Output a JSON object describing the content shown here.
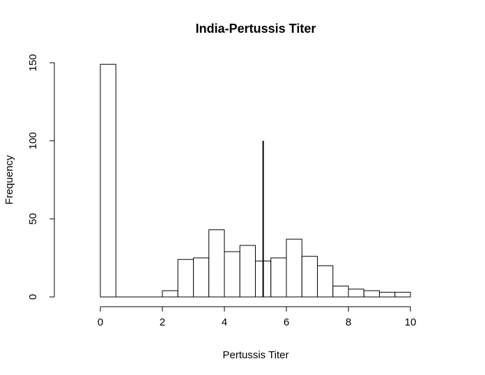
{
  "chart_data": {
    "type": "bar",
    "title": "India-Pertussis Titer",
    "xlabel": "Pertussis Titer",
    "ylabel": "Frequency",
    "xlim": [
      0,
      10
    ],
    "ylim": [
      0,
      150
    ],
    "x_ticks": [
      0,
      2,
      4,
      6,
      8,
      10
    ],
    "y_ticks": [
      0,
      50,
      100,
      150
    ],
    "bins": [
      {
        "x0": 0.0,
        "x1": 0.5,
        "count": 149
      },
      {
        "x0": 0.5,
        "x1": 1.0,
        "count": 0
      },
      {
        "x0": 1.0,
        "x1": 1.5,
        "count": 0
      },
      {
        "x0": 1.5,
        "x1": 2.0,
        "count": 0
      },
      {
        "x0": 2.0,
        "x1": 2.5,
        "count": 4
      },
      {
        "x0": 2.5,
        "x1": 3.0,
        "count": 24
      },
      {
        "x0": 3.0,
        "x1": 3.5,
        "count": 25
      },
      {
        "x0": 3.5,
        "x1": 4.0,
        "count": 43
      },
      {
        "x0": 4.0,
        "x1": 4.5,
        "count": 29
      },
      {
        "x0": 4.5,
        "x1": 5.0,
        "count": 33
      },
      {
        "x0": 5.0,
        "x1": 5.5,
        "count": 23
      },
      {
        "x0": 5.5,
        "x1": 6.0,
        "count": 25
      },
      {
        "x0": 6.0,
        "x1": 6.5,
        "count": 37
      },
      {
        "x0": 6.5,
        "x1": 7.0,
        "count": 26
      },
      {
        "x0": 7.0,
        "x1": 7.5,
        "count": 20
      },
      {
        "x0": 7.5,
        "x1": 8.0,
        "count": 7
      },
      {
        "x0": 8.0,
        "x1": 8.5,
        "count": 5
      },
      {
        "x0": 8.5,
        "x1": 9.0,
        "count": 4
      },
      {
        "x0": 9.0,
        "x1": 9.5,
        "count": 3
      },
      {
        "x0": 9.5,
        "x1": 10.0,
        "count": 3
      }
    ],
    "vertical_line": {
      "x": 5.25,
      "y0": 0,
      "y1": 100
    },
    "grid": false,
    "legend": "none",
    "colors": {
      "bar_fill": "#ffffff",
      "bar_stroke": "#000000",
      "line": "#000000"
    }
  }
}
